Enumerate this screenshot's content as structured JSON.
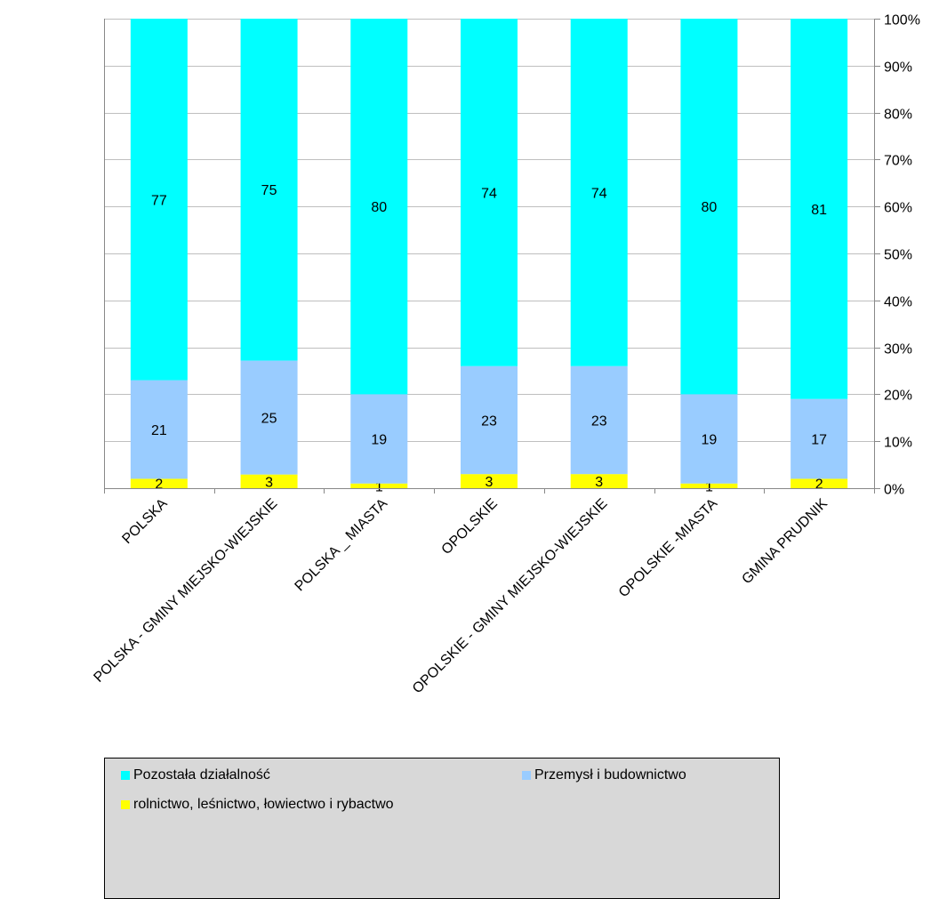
{
  "chart_data": {
    "type": "bar",
    "stacked": true,
    "normalized": true,
    "categories": [
      "POLSKA",
      "POLSKA - GMINY MIEJSKO-WIEJSKIE",
      "POLSKA _ MIASTA",
      "OPOLSKIE",
      "OPOLSKIE - GMINY MIEJSKO-WIEJSKIE",
      "OPOLSKIE -MIASTA",
      "GMINA PRUDNIK"
    ],
    "series": [
      {
        "name": "rolnictwo, leśnictwo, łowiectwo i rybactwo",
        "values": [
          2,
          3,
          1,
          3,
          3,
          1,
          2
        ],
        "color": "#ffff00"
      },
      {
        "name": "Przemysł i budownictwo",
        "values": [
          21,
          25,
          19,
          23,
          23,
          19,
          17
        ],
        "color": "#99ccff"
      },
      {
        "name": "Pozostała działalność",
        "values": [
          77,
          75,
          80,
          74,
          74,
          80,
          81
        ],
        "color": "#00ffff"
      }
    ],
    "yticks": [
      "0%",
      "10%",
      "20%",
      "30%",
      "40%",
      "50%",
      "60%",
      "70%",
      "80%",
      "90%",
      "100%"
    ],
    "ylim": [
      0,
      100
    ],
    "yaxis_position": "right",
    "grid": true,
    "legend_position": "bottom",
    "title": "",
    "xlabel": "",
    "ylabel": ""
  },
  "legend": {
    "items": [
      {
        "label": "Pozostała działalność",
        "color": "#00ffff"
      },
      {
        "label": "Przemysł i budownictwo",
        "color": "#99ccff"
      },
      {
        "label": "rolnictwo, leśnictwo, łowiectwo i rybactwo",
        "color": "#ffff00"
      }
    ]
  },
  "colors": {
    "grid": "#bfbfbf",
    "axis": "#888888",
    "legend_bg": "#d8d8d8"
  }
}
